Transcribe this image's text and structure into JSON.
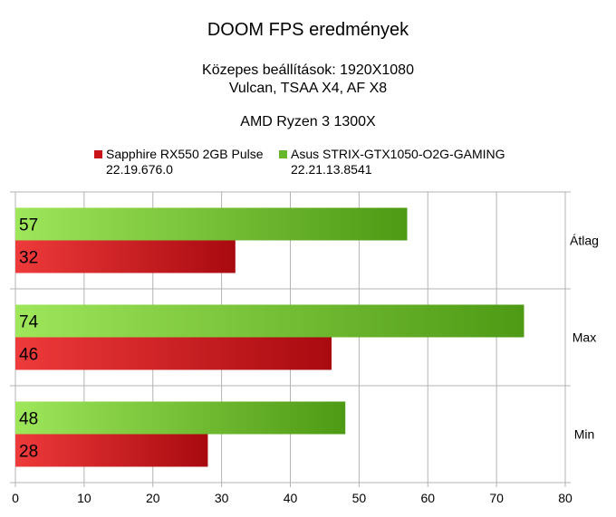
{
  "chart_data": {
    "type": "bar",
    "orientation": "horizontal",
    "title": "DOOM FPS eredmények",
    "subtitle_lines": [
      "Közepes beállítások: 1920X1080",
      "Vulcan, TSAA X4, AF X8",
      "AMD Ryzen 3 1300X"
    ],
    "categories": [
      "Átlag",
      "Max",
      "Min"
    ],
    "series": [
      {
        "name": "Asus STRIX-GTX1050-O2G-GAMING",
        "name_line2": "22.21.13.8541",
        "color": "#66b82a",
        "values": [
          57,
          74,
          48
        ]
      },
      {
        "name": "Sapphire RX550 2GB Pulse",
        "name_line2": "22.19.676.0",
        "color": "#c81418",
        "values": [
          32,
          46,
          28
        ]
      }
    ],
    "xlim": [
      0,
      80
    ],
    "xticks": [
      "0",
      "10",
      "20",
      "30",
      "40",
      "50",
      "60",
      "70",
      "80"
    ],
    "grid": true,
    "legend_position": "top"
  }
}
